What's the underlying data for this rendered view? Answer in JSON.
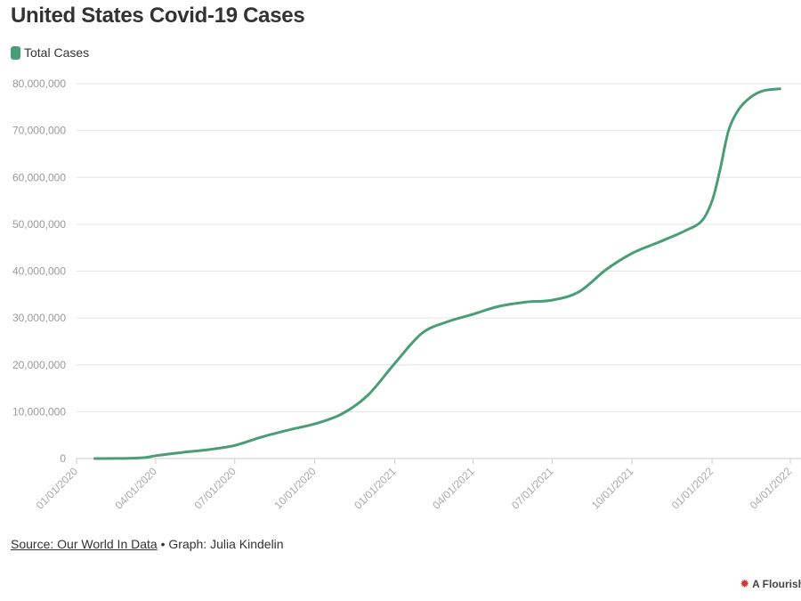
{
  "title": "United States Covid-19 Cases",
  "colors": {
    "line": "#4a9d78",
    "grid": "#e6e6e6",
    "axis": "#cccccc"
  },
  "chart_data": {
    "type": "line",
    "title": "United States Covid-19 Cases",
    "xlabel": "",
    "ylabel": "",
    "legend_position": "top-left",
    "grid": true,
    "ylim": [
      0,
      80000000
    ],
    "y_ticks": [
      0,
      10000000,
      20000000,
      30000000,
      40000000,
      50000000,
      60000000,
      70000000,
      80000000
    ],
    "y_tick_labels": [
      "0",
      "10,000,000",
      "20,000,000",
      "30,000,000",
      "40,000,000",
      "50,000,000",
      "60,000,000",
      "70,000,000",
      "80,000,000"
    ],
    "xlim": [
      "2020-01-01",
      "2022-04-01"
    ],
    "x_ticks": [
      "2020-01-01",
      "2020-04-01",
      "2020-07-01",
      "2020-10-01",
      "2021-01-01",
      "2021-04-01",
      "2021-07-01",
      "2021-10-01",
      "2022-01-01",
      "2022-04-01"
    ],
    "x_tick_labels": [
      "01/01/2020",
      "04/01/2020",
      "07/01/2020",
      "10/01/2020",
      "01/01/2021",
      "04/01/2021",
      "07/01/2021",
      "10/01/2021",
      "01/01/2022",
      "04/01/2022"
    ],
    "series": [
      {
        "name": "Total Cases",
        "color": "#4a9d78",
        "x": [
          "2020-01-22",
          "2020-03-01",
          "2020-03-20",
          "2020-04-01",
          "2020-05-01",
          "2020-06-01",
          "2020-07-01",
          "2020-08-01",
          "2020-09-01",
          "2020-10-01",
          "2020-11-01",
          "2020-12-01",
          "2021-01-01",
          "2021-02-01",
          "2021-03-01",
          "2021-04-01",
          "2021-05-01",
          "2021-06-01",
          "2021-07-01",
          "2021-08-01",
          "2021-09-01",
          "2021-10-01",
          "2021-11-01",
          "2021-12-01",
          "2021-12-20",
          "2022-01-01",
          "2022-01-10",
          "2022-01-20",
          "2022-02-01",
          "2022-02-15",
          "2022-03-01",
          "2022-03-20"
        ],
        "y": [
          0,
          50000,
          200000,
          600000,
          1300000,
          1900000,
          2800000,
          4600000,
          6100000,
          7400000,
          9500000,
          13500000,
          20300000,
          26700000,
          29100000,
          30800000,
          32500000,
          33400000,
          33800000,
          35600000,
          40300000,
          43800000,
          46200000,
          48600000,
          50700000,
          55000000,
          61500000,
          70000000,
          74600000,
          77200000,
          78500000,
          78900000
        ]
      }
    ]
  },
  "legend": {
    "label": "Total Cases"
  },
  "footer": {
    "source_label": "Source: Our World In Data",
    "separator": "•",
    "credit": "Graph: Julia Kindelin"
  },
  "branding": {
    "label": "A Flourish"
  }
}
